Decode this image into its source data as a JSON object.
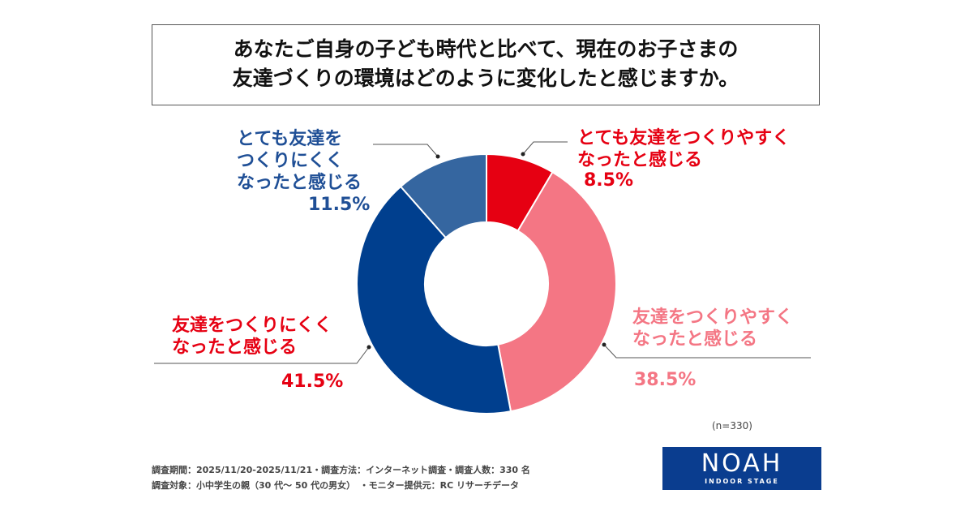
{
  "chart_data": {
    "type": "pie",
    "title": "あなたご自身の子ども時代と比べて、現在のお子さまの友達づくりの環境はどのように変化したと感じますか。",
    "title_lines": [
      "あなたご自身の子ども時代と比べて、現在のお子さまの",
      "友達づくりの環境はどのように変化したと感じますか。"
    ],
    "donut": true,
    "slices": [
      {
        "label": "とても友達をつくりやすくなったと感じる",
        "lines": [
          "とても友達をつくりやすく",
          "なったと感じる"
        ],
        "value": 8.5,
        "display": "8.5%",
        "color": "#e60012",
        "text_color": "#e60012"
      },
      {
        "label": "友達をつくりやすくなったと感じる",
        "lines": [
          "友達をつくりやすく",
          "なったと感じる"
        ],
        "value": 38.5,
        "display": "38.5%",
        "color": "#f47684",
        "text_color": "#f47684"
      },
      {
        "label": "友達をつくりにくくなったと感じる",
        "lines": [
          "友達をつくりにくく",
          "なったと感じる"
        ],
        "value": 41.5,
        "display": "41.5%",
        "color": "#003f8e",
        "text_color": "#e60012"
      },
      {
        "label": "とても友達をつくりにくくなったと感じる",
        "lines": [
          "とても友達を",
          "つくりにくく",
          "なったと感じる"
        ],
        "value": 11.5,
        "display": "11.5%",
        "color": "#3566a0",
        "text_color": "#1f4f96"
      }
    ]
  },
  "n_label": "(n=330)",
  "footer": [
    "調査期間：2025/11/20-2025/11/21・調査方法：インターネット調査・調査人数：330 名",
    "調査対象：小中学生の親（30 代～ 50 代の男女）　・モニター提供元：RC リサーチデータ"
  ],
  "logo": {
    "name": "NOAH",
    "tagline": "INDOOR STAGE"
  }
}
